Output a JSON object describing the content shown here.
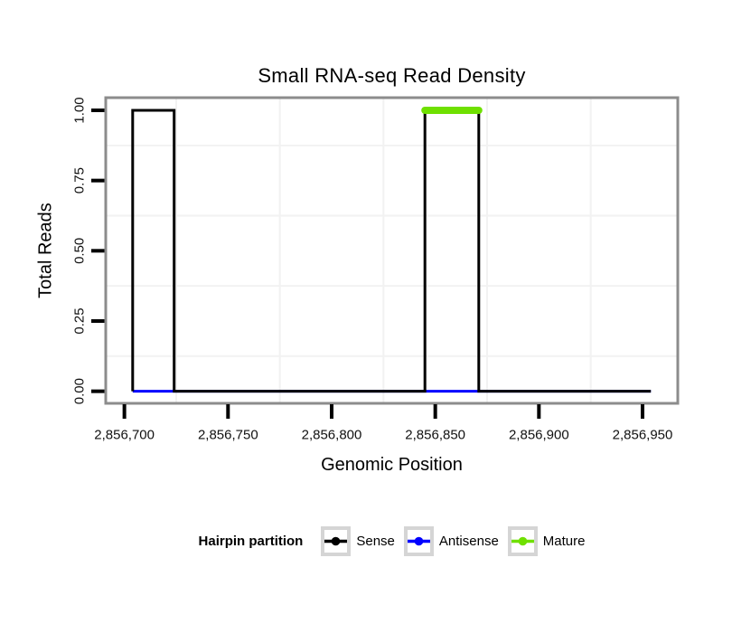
{
  "title": "Small RNA-seq Read Density",
  "legend": {
    "title": "Hairpin partition",
    "items": [
      {
        "label": "Sense",
        "color": "#000000"
      },
      {
        "label": "Antisense",
        "color": "#0000FF"
      },
      {
        "label": "Mature",
        "color": "#6FE000"
      }
    ]
  },
  "chart_data": {
    "type": "line",
    "subtype": "step",
    "title": "Small RNA-seq Read Density",
    "xlabel": "Genomic Position",
    "ylabel": "Total Reads",
    "xlim": [
      2856691,
      2856967
    ],
    "ylim": [
      -0.043,
      1.045
    ],
    "x_ticks": [
      {
        "value": 2856700,
        "label": "2,856,700"
      },
      {
        "value": 2856750,
        "label": "2,856,750"
      },
      {
        "value": 2856800,
        "label": "2,856,800"
      },
      {
        "value": 2856850,
        "label": "2,856,850"
      },
      {
        "value": 2856900,
        "label": "2,856,900"
      },
      {
        "value": 2856950,
        "label": "2,856,950"
      }
    ],
    "y_ticks": [
      {
        "value": 0.0,
        "label": "0.00"
      },
      {
        "value": 0.25,
        "label": "0.25"
      },
      {
        "value": 0.5,
        "label": "0.50"
      },
      {
        "value": 0.75,
        "label": "0.75"
      },
      {
        "value": 1.0,
        "label": "1.00"
      }
    ],
    "grid": {
      "minor_x": [
        2856725,
        2856775,
        2856825,
        2856875,
        2856925
      ],
      "minor_y": [
        0.125,
        0.375,
        0.625,
        0.875
      ],
      "color": "#F2F2F2"
    },
    "panel_border_color": "#8C8C8C",
    "tick_color": "#000000",
    "label_color": "#111111",
    "draw_order": [
      1,
      0,
      2
    ],
    "series": [
      {
        "name": "Sense",
        "color": "#000000",
        "width": 3,
        "linecap": "butt",
        "points": [
          [
            2856704,
            0
          ],
          [
            2856704,
            1
          ],
          [
            2856724,
            1
          ],
          [
            2856724,
            0
          ],
          [
            2856845,
            0
          ],
          [
            2856845,
            1
          ],
          [
            2856871,
            1
          ],
          [
            2856871,
            0
          ],
          [
            2856954,
            0
          ]
        ]
      },
      {
        "name": "Antisense",
        "color": "#0000FF",
        "width": 3,
        "linecap": "butt",
        "points": [
          [
            2856704,
            0
          ],
          [
            2856954,
            0
          ]
        ]
      },
      {
        "name": "Mature",
        "color": "#6FE000",
        "width": 8,
        "linecap": "round",
        "points": [
          [
            2856845,
            1
          ],
          [
            2856871,
            1
          ]
        ]
      }
    ]
  }
}
